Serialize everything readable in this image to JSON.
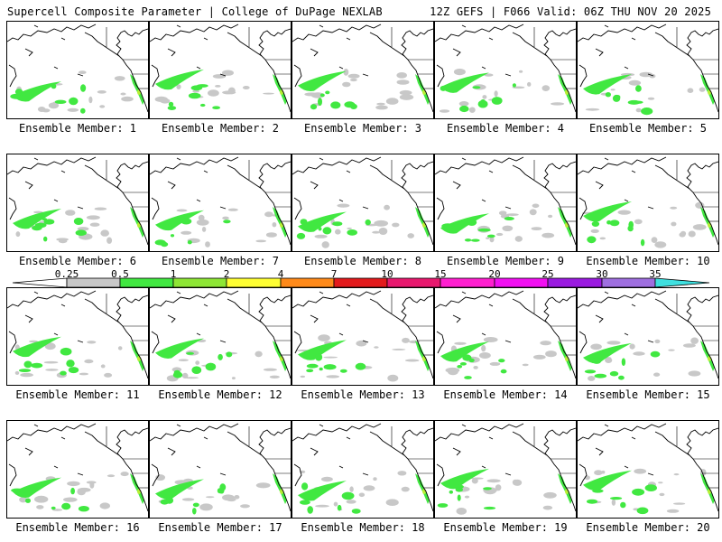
{
  "header": {
    "title": "Supercell Composite Parameter | College of DuPage NEXLAB",
    "run_info": "12Z GEFS | F066 Valid: 06Z THU NOV 20 2025"
  },
  "legend": {
    "ticks": [
      "0.25",
      "0.5",
      "1",
      "2",
      "4",
      "7",
      "10",
      "15",
      "20",
      "25",
      "30",
      "35"
    ],
    "colors": [
      "#c8c8c8",
      "#41e841",
      "#8ee635",
      "#ffff33",
      "#ff8a1a",
      "#e31a1c",
      "#e8186e",
      "#ff1fd0",
      "#f20ff2",
      "#9a1ae0",
      "#9f6fe0",
      "#3fe0e0"
    ]
  },
  "map_colors": {
    "low": "#c8c8c8",
    "mid": "#41e841",
    "high": "#b8ee35"
  },
  "members": [
    {
      "label": "Ensemble Member: 1"
    },
    {
      "label": "Ensemble Member: 2"
    },
    {
      "label": "Ensemble Member: 3"
    },
    {
      "label": "Ensemble Member: 4"
    },
    {
      "label": "Ensemble Member: 5"
    },
    {
      "label": "Ensemble Member: 6"
    },
    {
      "label": "Ensemble Member: 7"
    },
    {
      "label": "Ensemble Member: 8"
    },
    {
      "label": "Ensemble Member: 9"
    },
    {
      "label": "Ensemble Member: 10"
    },
    {
      "label": "Ensemble Member: 11"
    },
    {
      "label": "Ensemble Member: 12"
    },
    {
      "label": "Ensemble Member: 13"
    },
    {
      "label": "Ensemble Member: 14"
    },
    {
      "label": "Ensemble Member: 15"
    },
    {
      "label": "Ensemble Member: 16"
    },
    {
      "label": "Ensemble Member: 17"
    },
    {
      "label": "Ensemble Member: 18"
    },
    {
      "label": "Ensemble Member: 19"
    },
    {
      "label": "Ensemble Member: 20"
    }
  ]
}
